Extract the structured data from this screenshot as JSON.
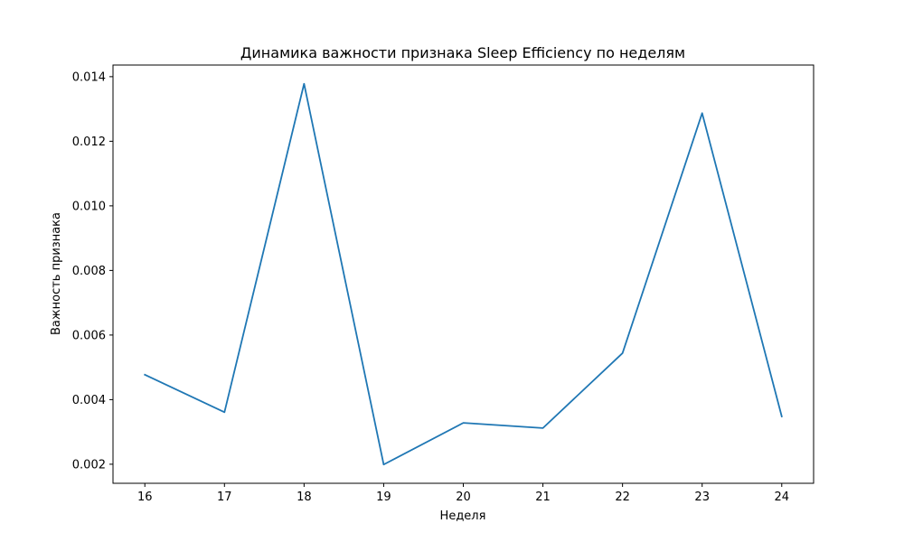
{
  "chart_data": {
    "type": "line",
    "title": "Динамика важности признака Sleep Efficiency по неделям",
    "xlabel": "Неделя",
    "ylabel": "Важность признака",
    "x": [
      16,
      17,
      18,
      19,
      20,
      21,
      22,
      23,
      24
    ],
    "series": [
      {
        "values": [
          0.00477,
          0.00361,
          0.01378,
          0.00199,
          0.00328,
          0.00312,
          0.00544,
          0.01287,
          0.00348
        ],
        "color": "#1f77b4"
      }
    ],
    "xlim": [
      15.6,
      24.4
    ],
    "ylim": [
      0.00141,
      0.01436
    ],
    "xticks": [
      16,
      17,
      18,
      19,
      20,
      21,
      22,
      23,
      24
    ],
    "yticks": [
      0.002,
      0.004,
      0.006,
      0.008,
      0.01,
      0.012,
      0.014
    ],
    "ytick_labels": [
      "0.002",
      "0.004",
      "0.006",
      "0.008",
      "0.010",
      "0.012",
      "0.014"
    ],
    "grid": false,
    "legend": "none"
  }
}
